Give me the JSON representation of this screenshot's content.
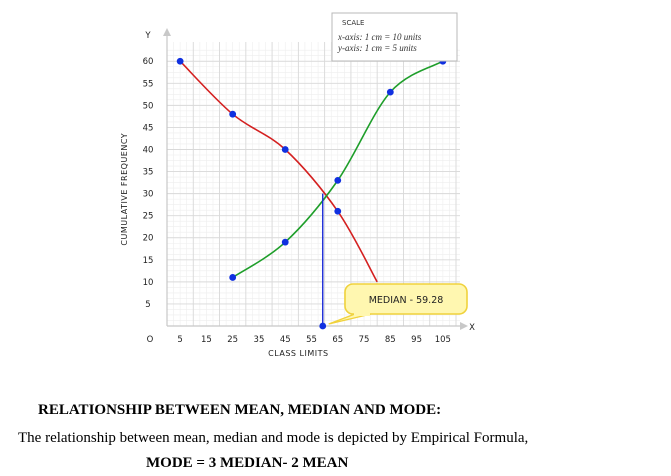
{
  "chart_data": {
    "type": "line",
    "xlabel": "CLASS LIMITS",
    "ylabel": "CUMULATIVE FREQUENCY",
    "x_axis_letter": "X",
    "y_axis_letter": "Y",
    "origin_label": "O",
    "x_ticks": [
      "5",
      "15",
      "25",
      "35",
      "45",
      "55",
      "65",
      "75",
      "85",
      "95",
      "105"
    ],
    "y_ticks": [
      "5",
      "10",
      "15",
      "20",
      "25",
      "30",
      "35",
      "40",
      "45",
      "50",
      "55",
      "60"
    ],
    "xlim": [
      0,
      110
    ],
    "ylim": [
      0,
      63
    ],
    "grid": true,
    "series": [
      {
        "color": "#d42020",
        "points": [
          [
            5,
            60
          ],
          [
            25,
            48
          ],
          [
            45,
            40
          ],
          [
            65,
            26
          ],
          [
            80,
            10
          ]
        ]
      },
      {
        "color": "#1e9e2a",
        "points": [
          [
            25,
            11
          ],
          [
            45,
            19
          ],
          [
            65,
            33
          ],
          [
            85,
            53
          ],
          [
            105,
            60
          ]
        ]
      }
    ],
    "intersection": {
      "x": 59.28,
      "y": 30
    },
    "median_line_color": "#1a2ad6",
    "scale_box": {
      "title": "SCALE",
      "lines": [
        "x-axis: 1 cm  =  10 units",
        "y-axis: 1 cm  =  5 units"
      ]
    },
    "median_label": "MEDIAN - 59.28"
  },
  "text": {
    "heading": "RELATIONSHIP BETWEEN MEAN, MEDIAN AND MODE:",
    "description": "The relationship between mean, median and mode is depicted by Empirical Formula,",
    "formula": "MODE = 3 MEDIAN- 2 MEAN"
  }
}
